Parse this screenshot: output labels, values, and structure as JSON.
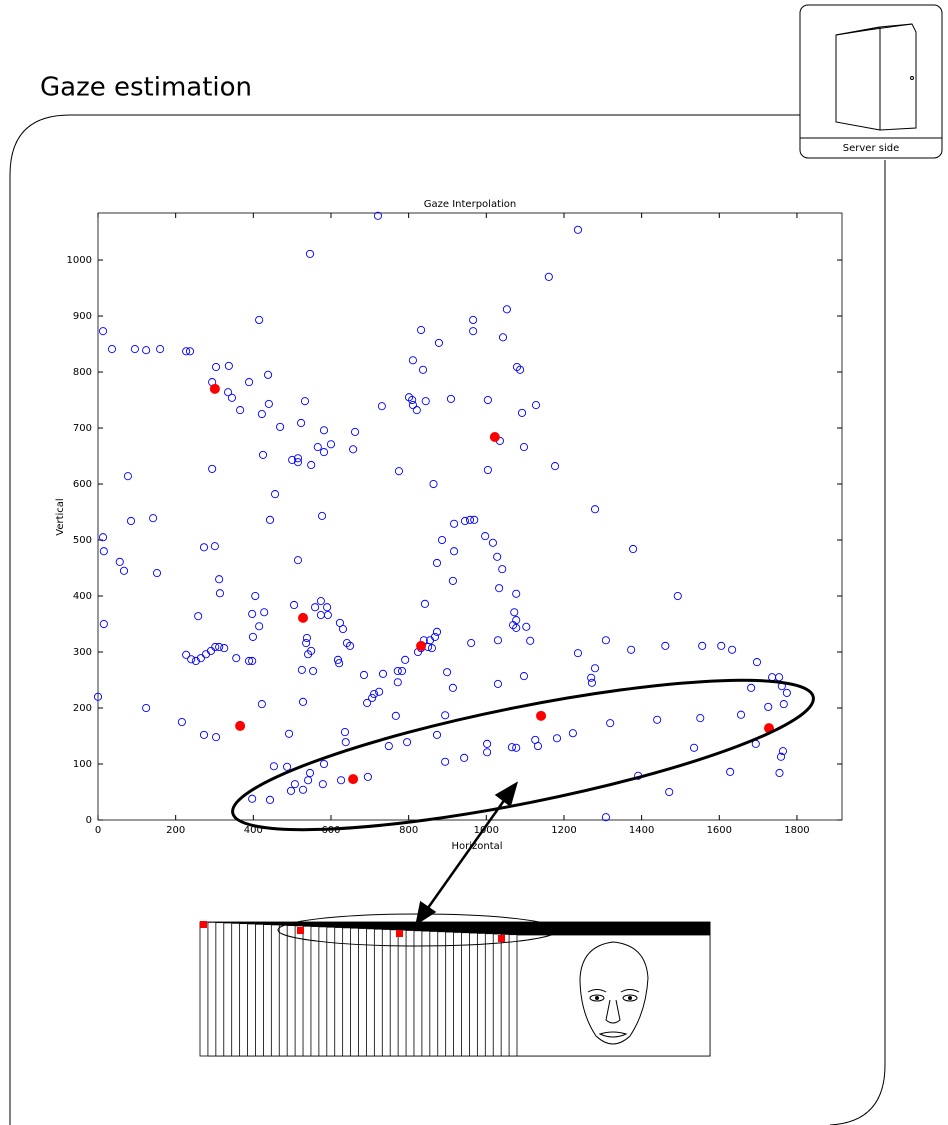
{
  "header": {
    "title": "Gaze estimation"
  },
  "server": {
    "label": "Server side"
  },
  "chart_data": {
    "type": "scatter",
    "title": "Gaze Interpolation",
    "x_label": "Horizontal",
    "y_label": "Vertical",
    "xlim": [
      0,
      1916
    ],
    "ylim": [
      0,
      1084
    ],
    "xticks": [
      0,
      200,
      400,
      600,
      800,
      1000,
      1200,
      1400,
      1600,
      1800
    ],
    "yticks": [
      0,
      100,
      200,
      300,
      400,
      500,
      600,
      700,
      800,
      900,
      1000
    ],
    "grid": false,
    "series": [
      {
        "color": "#0000ff",
        "marker": "open-circle",
        "x": [
          721,
          1236,
          546,
          1161,
          415,
          1053,
          966,
          966,
          13,
          36,
          95,
          124,
          160,
          227,
          237,
          304,
          337,
          832,
          1043,
          878,
          811,
          837,
          1079,
          1087,
          389,
          294,
          335,
          345,
          438,
          440,
          533,
          731,
          801,
          809,
          811,
          821,
          844,
          909,
          1004,
          1128,
          1092,
          366,
          422,
          469,
          523,
          425,
          500,
          515,
          515,
          549,
          566,
          582,
          582,
          600,
          662,
          657,
          1035,
          1097,
          1004,
          775,
          294,
          864,
          1177,
          1280,
          456,
          443,
          577,
          273,
          301,
          77,
          85,
          142,
          13,
          15,
          56,
          67,
          152,
          15,
          0,
          124,
          216,
          273,
          304,
          492,
          636,
          638,
          749,
          796,
          873,
          943,
          894,
          1002,
          1002,
          1066,
          1077,
          1126,
          1133,
          1182,
          1223,
          1319,
          1440,
          1551,
          1656,
          1726,
          1694,
          1755,
          1759,
          1764,
          1628,
          1535,
          1391,
          1308,
          1471,
          1308,
          1236,
          1270,
          1272,
          1280,
          1373,
          1461,
          1556,
          1605,
          1633,
          1697,
          1682,
          1736,
          1754,
          1761,
          1774,
          1766,
          1378,
          1493,
          945,
          958,
          969,
          917,
          997,
          1017,
          1028,
          1041,
          1033,
          1077,
          1030,
          1072,
          1069,
          1077,
          1077,
          1103,
          1113,
          1097,
          1030,
          961,
          917,
          873,
          914,
          886,
          842,
          855,
          860,
          873,
          868,
          899,
          914,
          894,
          734,
          706,
          711,
          724,
          693,
          772,
          783,
          772,
          767,
          824,
          832,
          850,
          839,
          791,
          314,
          312,
          405,
          397,
          428,
          415,
          399,
          389,
          397,
          356,
          325,
          312,
          302,
          291,
          278,
          265,
          252,
          240,
          227,
          258,
          515,
          505,
          559,
          574,
          574,
          590,
          592,
          623,
          631,
          641,
          649,
          621,
          618,
          538,
          536,
          549,
          554,
          525,
          541,
          528,
          422,
          487,
          497,
          507,
          528,
          541,
          546,
          582,
          579,
          626,
          695,
          453,
          443,
          397,
          685
        ],
        "values": [
          1079,
          1054,
          1011,
          970,
          893,
          912,
          893,
          873,
          873,
          841,
          841,
          839,
          841,
          837,
          837,
          809,
          811,
          875,
          862,
          852,
          821,
          804,
          809,
          804,
          782,
          782,
          764,
          754,
          795,
          743,
          748,
          739,
          755,
          750,
          741,
          732,
          748,
          752,
          750,
          741,
          727,
          732,
          725,
          702,
          709,
          652,
          643,
          646,
          639,
          634,
          666,
          657,
          696,
          671,
          693,
          662,
          677,
          666,
          625,
          623,
          627,
          600,
          632,
          555,
          582,
          536,
          543,
          487,
          489,
          614,
          534,
          539,
          505,
          480,
          461,
          445,
          441,
          350,
          220,
          200,
          175,
          152,
          148,
          154,
          157,
          139,
          132,
          139,
          152,
          111,
          104,
          121,
          136,
          130,
          129,
          143,
          132,
          146,
          155,
          173,
          179,
          182,
          188,
          202,
          136,
          84,
          113,
          123,
          86,
          129,
          79,
          5,
          50,
          321,
          298,
          254,
          245,
          271,
          304,
          311,
          311,
          311,
          304,
          282,
          236,
          255,
          255,
          239,
          227,
          207,
          484,
          400,
          534,
          536,
          536,
          529,
          507,
          495,
          470,
          448,
          414,
          404,
          243,
          371,
          348,
          357,
          343,
          345,
          320,
          257,
          321,
          316,
          480,
          459,
          427,
          500,
          386,
          321,
          307,
          336,
          327,
          264,
          236,
          187,
          261,
          218,
          225,
          229,
          209,
          266,
          266,
          246,
          186,
          300,
          307,
          309,
          321,
          286,
          405,
          430,
          400,
          368,
          371,
          346,
          327,
          284,
          284,
          289,
          307,
          309,
          309,
          302,
          296,
          289,
          284,
          287,
          295,
          364,
          464,
          384,
          380,
          391,
          366,
          380,
          366,
          352,
          341,
          316,
          311,
          280,
          286,
          325,
          316,
          302,
          266,
          268,
          296,
          211,
          207,
          95,
          52,
          64,
          54,
          71,
          84,
          100,
          64,
          71,
          77,
          96,
          36,
          38,
          259
        ]
      },
      {
        "color": "#ff0000",
        "marker": "filled-circle",
        "x": [
          301,
          1022,
          528,
          832,
          366,
          1141,
          1728,
          657
        ],
        "values": [
          770,
          684,
          361,
          311,
          168,
          186,
          164,
          73
        ]
      }
    ]
  }
}
